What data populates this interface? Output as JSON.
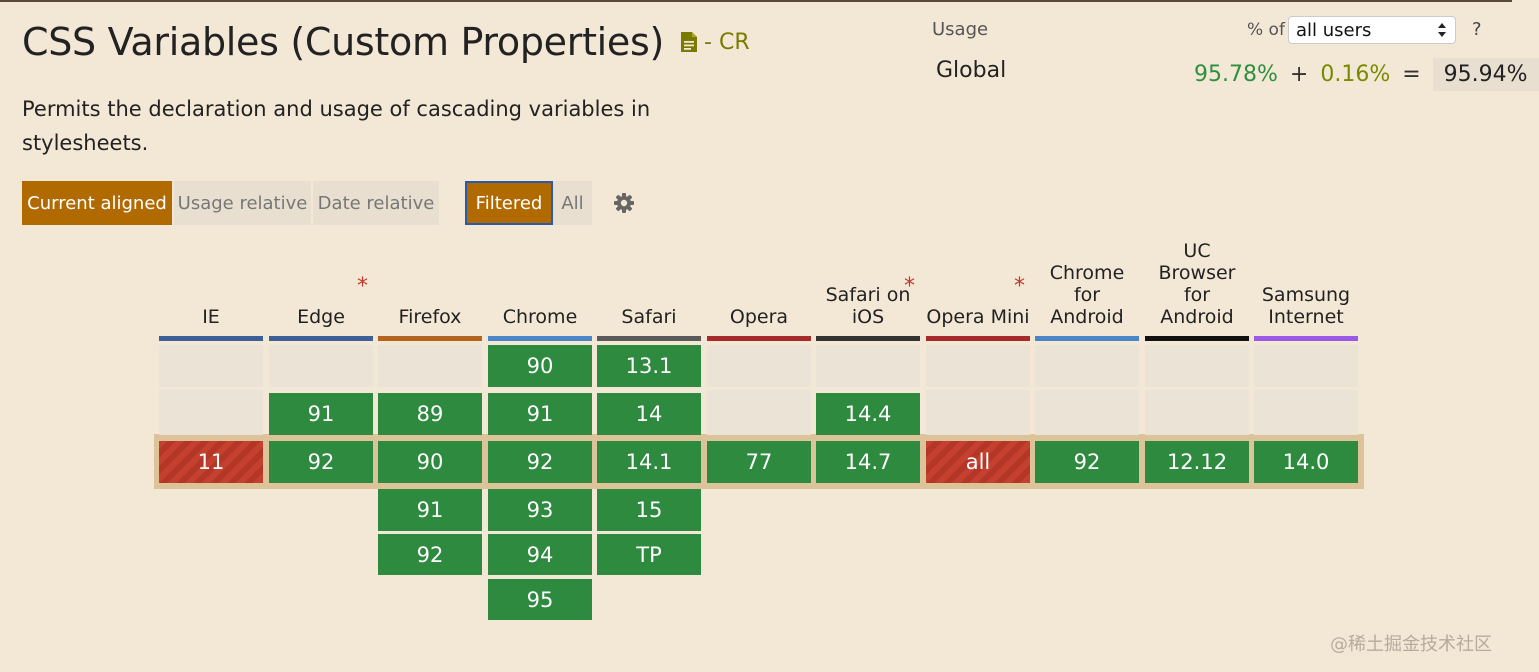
{
  "feature": {
    "title": "CSS Variables (Custom Properties)",
    "spec_icon": "document-icon",
    "spec_status": "- CR",
    "description": "Permits the declaration and usage of cascading variables in stylesheets."
  },
  "usage": {
    "label": "Usage",
    "pct_of": "% of",
    "users_select": "all users",
    "help": "?",
    "region": "Global",
    "full": "95.78%",
    "plus": "+",
    "partial": "0.16%",
    "equals": "=",
    "total": "95.94%"
  },
  "toolbar": {
    "current_aligned": "Current aligned",
    "usage_relative": "Usage relative",
    "date_relative": "Date relative",
    "filtered": "Filtered",
    "all": "All",
    "settings_icon": "gear-icon"
  },
  "colors": {
    "supported": "#2d8a3f",
    "unsupported": "#c4402f",
    "accent": "#b06a00"
  },
  "browsers": [
    {
      "name": "IE",
      "bar": "#3c5f97",
      "star": false,
      "rows": [
        "",
        "",
        "11"
      ],
      "status": [
        "",
        "",
        "n"
      ]
    },
    {
      "name": "Edge",
      "bar": "#3c5f97",
      "star": true,
      "rows": [
        "",
        "91",
        "92"
      ],
      "status": [
        "",
        "y",
        "y"
      ]
    },
    {
      "name": "Firefox",
      "bar": "#b5641f",
      "star": false,
      "rows": [
        "",
        "89",
        "90",
        "91",
        "92"
      ],
      "status": [
        "",
        "y",
        "y",
        "y",
        "y"
      ]
    },
    {
      "name": "Chrome",
      "bar": "#4a86c8",
      "star": false,
      "rows": [
        "90",
        "91",
        "92",
        "93",
        "94",
        "95"
      ],
      "status": [
        "y",
        "y",
        "y",
        "y",
        "y",
        "y"
      ]
    },
    {
      "name": "Safari",
      "bar": "#5a5a5a",
      "star": false,
      "rows": [
        "13.1",
        "14",
        "14.1",
        "15",
        "TP"
      ],
      "status": [
        "y",
        "y",
        "y",
        "y",
        "y"
      ]
    },
    {
      "name": "Opera",
      "bar": "#a52a2a",
      "star": false,
      "rows": [
        "",
        "",
        "77"
      ],
      "status": [
        "",
        "",
        "y"
      ]
    },
    {
      "name": "Safari on iOS",
      "bar": "#333333",
      "star": true,
      "rows": [
        "",
        "14.4",
        "14.7"
      ],
      "status": [
        "",
        "y",
        "y"
      ]
    },
    {
      "name": "Opera Mini",
      "bar": "#a52a2a",
      "star": true,
      "rows": [
        "",
        "",
        "all"
      ],
      "status": [
        "",
        "",
        "n"
      ]
    },
    {
      "name": "Chrome for Android",
      "bar": "#4a86c8",
      "star": false,
      "rows": [
        "",
        "",
        "92"
      ],
      "status": [
        "",
        "",
        "y"
      ]
    },
    {
      "name": "UC Browser for Android",
      "bar": "#111111",
      "star": false,
      "rows": [
        "",
        "",
        "12.12"
      ],
      "status": [
        "",
        "",
        "y"
      ]
    },
    {
      "name": "Samsung Internet",
      "bar": "#9b59e8",
      "star": false,
      "rows": [
        "",
        "",
        "14.0"
      ],
      "status": [
        "",
        "",
        "y"
      ]
    }
  ],
  "watermark": "@稀土掘金技术社区"
}
